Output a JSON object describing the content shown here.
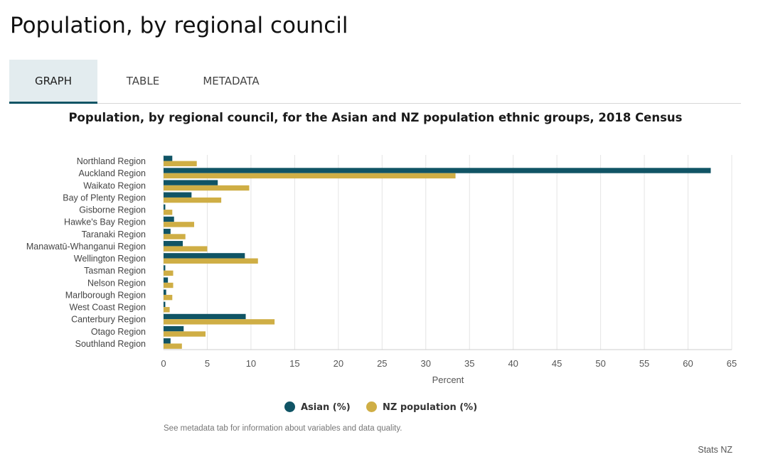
{
  "page": {
    "title": "Population, by regional council"
  },
  "tabs": [
    {
      "label": "GRAPH",
      "active": true
    },
    {
      "label": "TABLE",
      "active": false
    },
    {
      "label": "METADATA",
      "active": false
    }
  ],
  "chart_data": {
    "type": "bar",
    "orientation": "horizontal",
    "title": "Population, by regional council, for the Asian and NZ population ethnic groups, 2018 Census",
    "xlabel": "Percent",
    "ylabel": "",
    "xlim": [
      0,
      65
    ],
    "xticks": [
      0,
      5,
      10,
      15,
      20,
      25,
      30,
      35,
      40,
      45,
      50,
      55,
      60,
      65
    ],
    "grid": "vertical",
    "legend_position": "bottom",
    "categories": [
      "Northland Region",
      "Auckland Region",
      "Waikato Region",
      "Bay of Plenty Region",
      "Gisborne Region",
      "Hawke's Bay Region",
      "Taranaki Region",
      "Manawatū-Whanganui Region",
      "Wellington Region",
      "Tasman Region",
      "Nelson Region",
      "Marlborough Region",
      "West Coast Region",
      "Canterbury Region",
      "Otago Region",
      "Southland Region"
    ],
    "series": [
      {
        "name": "Asian (%)",
        "color": "#105465",
        "values": [
          1.0,
          62.6,
          6.2,
          3.2,
          0.2,
          1.2,
          0.8,
          2.2,
          9.3,
          0.2,
          0.5,
          0.3,
          0.2,
          9.4,
          2.3,
          0.8
        ]
      },
      {
        "name": "NZ population (%)",
        "color": "#cfae45",
        "values": [
          3.8,
          33.4,
          9.8,
          6.6,
          1.0,
          3.5,
          2.5,
          5.0,
          10.8,
          1.1,
          1.1,
          1.0,
          0.7,
          12.7,
          4.8,
          2.1
        ]
      }
    ]
  },
  "footnote": "See metadata tab for information about variables and data quality.",
  "source": "Stats NZ"
}
